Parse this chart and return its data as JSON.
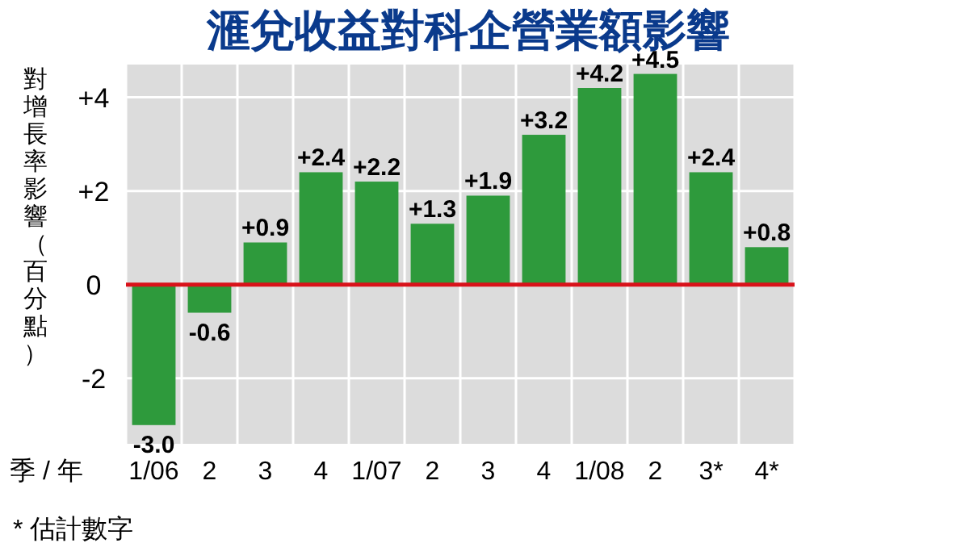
{
  "chart_data": {
    "type": "bar",
    "title": "滙兌收益對科企營業額影響",
    "xlabel": "季 / 年",
    "ylabel": "對增長率影響（百分點）",
    "categories": [
      "1/06",
      "2",
      "3",
      "4",
      "1/07",
      "2",
      "3",
      "4",
      "1/08",
      "2",
      "3*",
      "4*"
    ],
    "values": [
      -3.0,
      -0.6,
      0.9,
      2.4,
      2.2,
      1.3,
      1.9,
      3.2,
      4.2,
      4.5,
      2.4,
      0.8
    ],
    "value_labels": [
      "-3.0",
      "-0.6",
      "+0.9",
      "+2.4",
      "+2.2",
      "+1.3",
      "+1.9",
      "+3.2",
      "+4.2",
      "+4.5",
      "+2.4",
      "+0.8"
    ],
    "color": "#2e9a3c",
    "ylim": [
      -3.4,
      4.7
    ],
    "yticks": [
      {
        "value": 4,
        "label": "+4"
      },
      {
        "value": 2,
        "label": "+2"
      },
      0,
      -2
    ],
    "grid": true,
    "ref_lines": [
      {
        "axis": "y",
        "value": 0,
        "color": "#d9121a"
      }
    ],
    "annotations": [
      "* 估計數字"
    ]
  }
}
